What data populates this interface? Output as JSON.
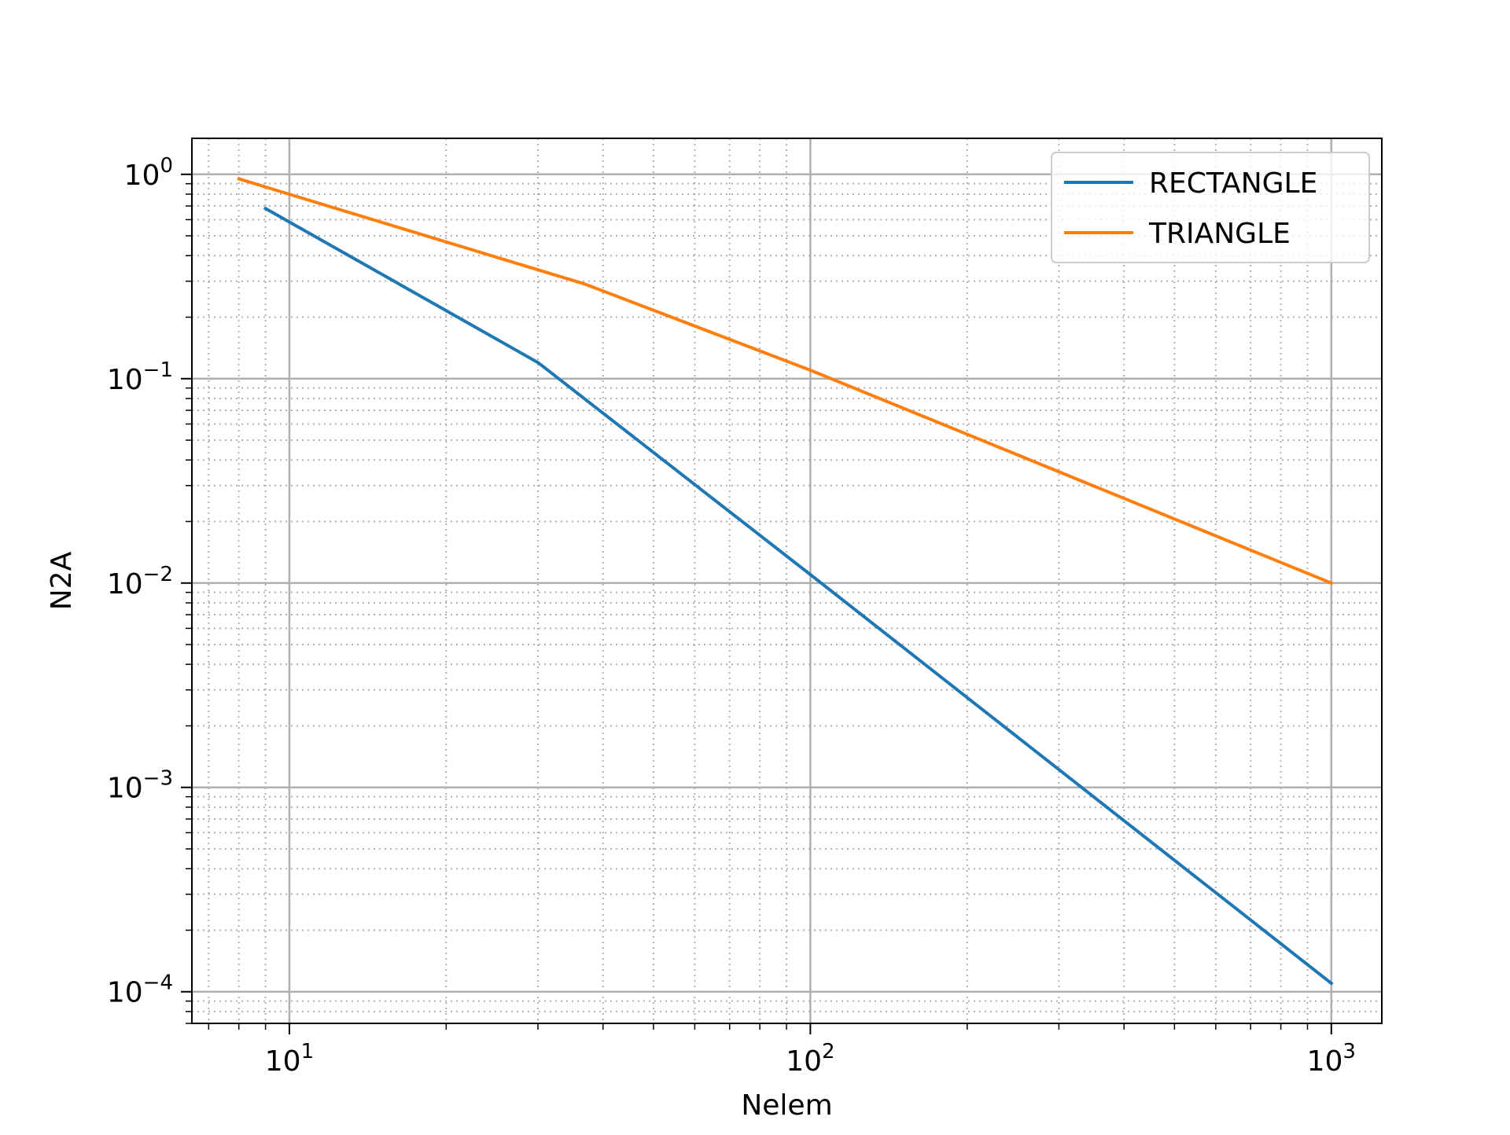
{
  "chart_data": {
    "type": "line",
    "title": "",
    "xlabel": "Nelem",
    "ylabel": "N2A",
    "xscale": "log",
    "yscale": "log",
    "xlim": [
      6.5,
      1250
    ],
    "ylim": [
      7e-05,
      1.5
    ],
    "x_ticks": [
      {
        "value": 10,
        "base": "10",
        "exp": "1"
      },
      {
        "value": 100,
        "base": "10",
        "exp": "2"
      },
      {
        "value": 1000,
        "base": "10",
        "exp": "3"
      }
    ],
    "y_ticks": [
      {
        "value": 1,
        "base": "10",
        "exp": "0"
      },
      {
        "value": 0.1,
        "base": "10",
        "exp": "−1"
      },
      {
        "value": 0.01,
        "base": "10",
        "exp": "−2"
      },
      {
        "value": 0.001,
        "base": "10",
        "exp": "−3"
      },
      {
        "value": 0.0001,
        "base": "10",
        "exp": "−4"
      }
    ],
    "grid": {
      "major": true,
      "minor": true
    },
    "legend_position": "top-right",
    "series": [
      {
        "name": "RECTANGLE",
        "color": "#1f77b4",
        "x": [
          9,
          30,
          100,
          1000
        ],
        "y": [
          0.68,
          0.12,
          0.011,
          0.00011
        ]
      },
      {
        "name": "TRIANGLE",
        "color": "#ff7f0e",
        "x": [
          8,
          37,
          100,
          1000
        ],
        "y": [
          0.95,
          0.29,
          0.11,
          0.01
        ]
      }
    ]
  }
}
